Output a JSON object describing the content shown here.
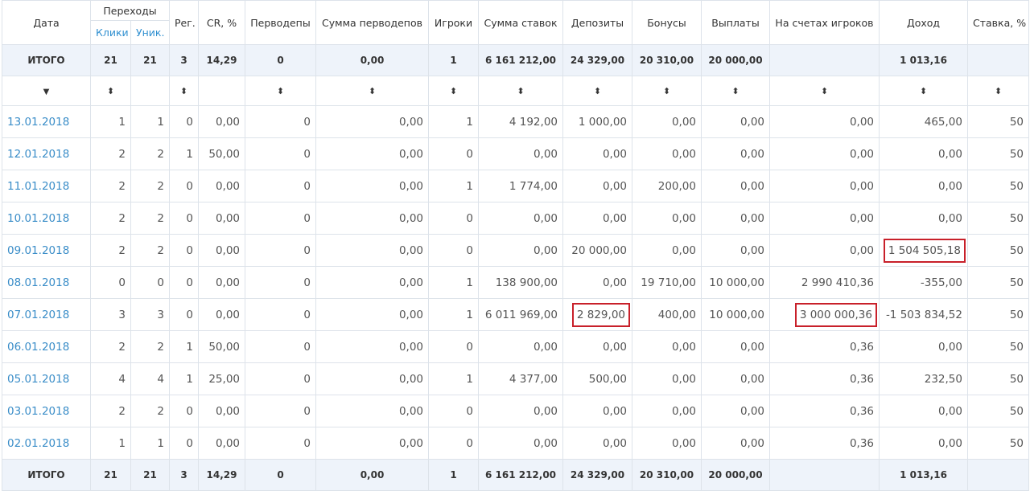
{
  "headers": {
    "date": "Дата",
    "transitions": "Переходы",
    "clicks": "Клики",
    "unique": "Уник.",
    "reg": "Рег.",
    "cr": "CR, %",
    "first_deps": "Перводепы",
    "first_deps_sum": "Сумма перводепов",
    "players": "Игроки",
    "bets_sum": "Сумма ставок",
    "deposits": "Депозиты",
    "bonuses": "Бонусы",
    "payouts": "Выплаты",
    "balances": "На счетах игроков",
    "income": "Доход",
    "rate": "Ставка, %"
  },
  "sort": {
    "down_arrow": "▼",
    "updown": "⬍"
  },
  "totals": {
    "label": "ИТОГО",
    "clicks": "21",
    "unique": "21",
    "reg": "3",
    "cr": "14,29",
    "first_deps": "0",
    "first_deps_sum": "0,00",
    "players": "1",
    "bets_sum": "6 161 212,00",
    "deposits": "24 329,00",
    "bonuses": "20 310,00",
    "payouts": "20 000,00",
    "balances": "",
    "income": "1 013,16",
    "rate": ""
  },
  "rows": [
    {
      "date": "13.01.2018",
      "clicks": "1",
      "unique": "1",
      "reg": "0",
      "cr": "0,00",
      "first_deps": "0",
      "first_deps_sum": "0,00",
      "players": "1",
      "bets_sum": "4 192,00",
      "deposits": "1 000,00",
      "bonuses": "0,00",
      "payouts": "0,00",
      "balances": "0,00",
      "income": "465,00",
      "rate": "50"
    },
    {
      "date": "12.01.2018",
      "clicks": "2",
      "unique": "2",
      "reg": "1",
      "cr": "50,00",
      "first_deps": "0",
      "first_deps_sum": "0,00",
      "players": "0",
      "bets_sum": "0,00",
      "deposits": "0,00",
      "bonuses": "0,00",
      "payouts": "0,00",
      "balances": "0,00",
      "income": "0,00",
      "rate": "50"
    },
    {
      "date": "11.01.2018",
      "clicks": "2",
      "unique": "2",
      "reg": "0",
      "cr": "0,00",
      "first_deps": "0",
      "first_deps_sum": "0,00",
      "players": "1",
      "bets_sum": "1 774,00",
      "deposits": "0,00",
      "bonuses": "200,00",
      "payouts": "0,00",
      "balances": "0,00",
      "income": "0,00",
      "rate": "50"
    },
    {
      "date": "10.01.2018",
      "clicks": "2",
      "unique": "2",
      "reg": "0",
      "cr": "0,00",
      "first_deps": "0",
      "first_deps_sum": "0,00",
      "players": "0",
      "bets_sum": "0,00",
      "deposits": "0,00",
      "bonuses": "0,00",
      "payouts": "0,00",
      "balances": "0,00",
      "income": "0,00",
      "rate": "50"
    },
    {
      "date": "09.01.2018",
      "clicks": "2",
      "unique": "2",
      "reg": "0",
      "cr": "0,00",
      "first_deps": "0",
      "first_deps_sum": "0,00",
      "players": "0",
      "bets_sum": "0,00",
      "deposits": "20 000,00",
      "bonuses": "0,00",
      "payouts": "0,00",
      "balances": "0,00",
      "income": "1 504 505,18",
      "rate": "50"
    },
    {
      "date": "08.01.2018",
      "clicks": "0",
      "unique": "0",
      "reg": "0",
      "cr": "0,00",
      "first_deps": "0",
      "first_deps_sum": "0,00",
      "players": "1",
      "bets_sum": "138 900,00",
      "deposits": "0,00",
      "bonuses": "19 710,00",
      "payouts": "10 000,00",
      "balances": "2 990 410,36",
      "income": "-355,00",
      "rate": "50"
    },
    {
      "date": "07.01.2018",
      "clicks": "3",
      "unique": "3",
      "reg": "0",
      "cr": "0,00",
      "first_deps": "0",
      "first_deps_sum": "0,00",
      "players": "1",
      "bets_sum": "6 011 969,00",
      "deposits": "2 829,00",
      "bonuses": "400,00",
      "payouts": "10 000,00",
      "balances": "3 000 000,36",
      "income": "-1 503 834,52",
      "rate": "50"
    },
    {
      "date": "06.01.2018",
      "clicks": "2",
      "unique": "2",
      "reg": "1",
      "cr": "50,00",
      "first_deps": "0",
      "first_deps_sum": "0,00",
      "players": "0",
      "bets_sum": "0,00",
      "deposits": "0,00",
      "bonuses": "0,00",
      "payouts": "0,00",
      "balances": "0,36",
      "income": "0,00",
      "rate": "50"
    },
    {
      "date": "05.01.2018",
      "clicks": "4",
      "unique": "4",
      "reg": "1",
      "cr": "25,00",
      "first_deps": "0",
      "first_deps_sum": "0,00",
      "players": "1",
      "bets_sum": "4 377,00",
      "deposits": "500,00",
      "bonuses": "0,00",
      "payouts": "0,00",
      "balances": "0,36",
      "income": "232,50",
      "rate": "50"
    },
    {
      "date": "03.01.2018",
      "clicks": "2",
      "unique": "2",
      "reg": "0",
      "cr": "0,00",
      "first_deps": "0",
      "first_deps_sum": "0,00",
      "players": "0",
      "bets_sum": "0,00",
      "deposits": "0,00",
      "bonuses": "0,00",
      "payouts": "0,00",
      "balances": "0,36",
      "income": "0,00",
      "rate": "50"
    },
    {
      "date": "02.01.2018",
      "clicks": "1",
      "unique": "1",
      "reg": "0",
      "cr": "0,00",
      "first_deps": "0",
      "first_deps_sum": "0,00",
      "players": "0",
      "bets_sum": "0,00",
      "deposits": "0,00",
      "bonuses": "0,00",
      "payouts": "0,00",
      "balances": "0,36",
      "income": "0,00",
      "rate": "50"
    }
  ],
  "colors": {
    "link": "#3a8dc8",
    "total_bg": "#eef3fa",
    "border": "#dde3ea",
    "highlight": "#c8202a"
  }
}
